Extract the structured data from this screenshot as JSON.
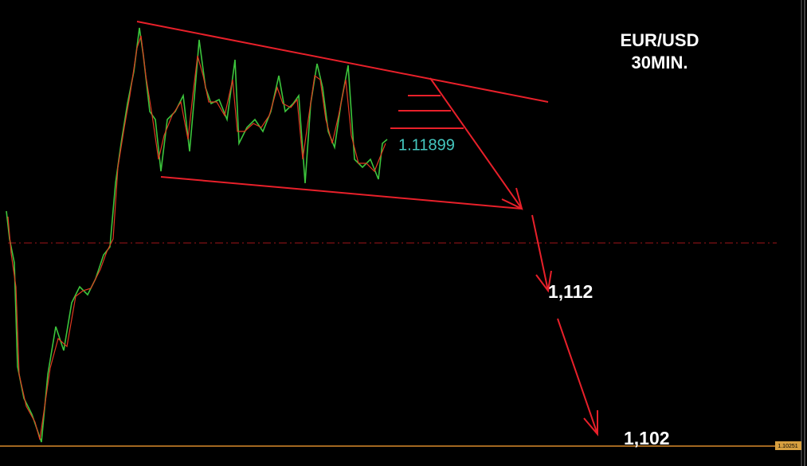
{
  "chart_title": {
    "pair": "EUR/USD",
    "timeframe": "30MIN."
  },
  "annotations": {
    "current_price": "1.11899",
    "target_1": "1,112",
    "target_2": "1,102"
  },
  "price_tag": "1.10251"
}
